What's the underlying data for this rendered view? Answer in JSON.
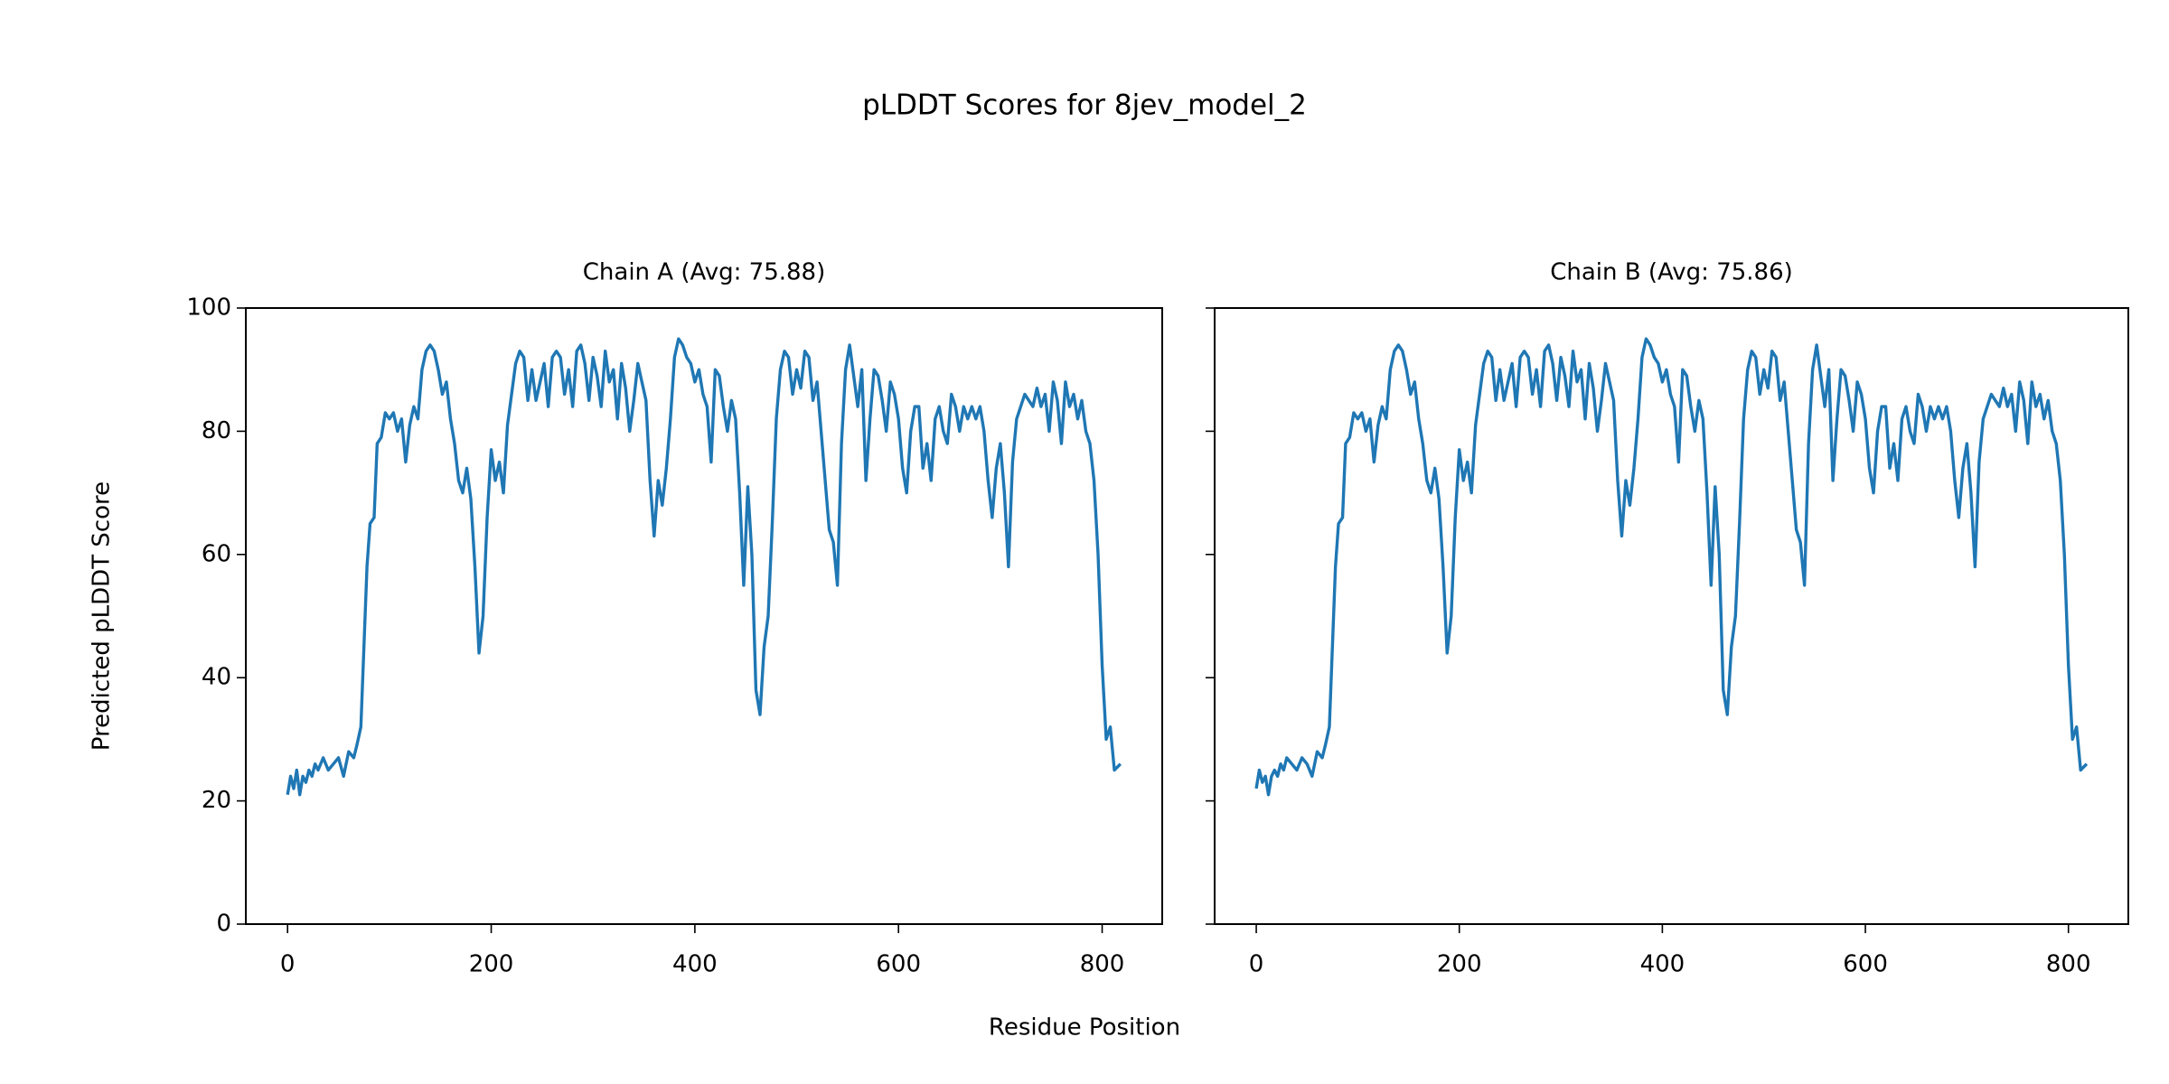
{
  "title": "pLDDT Scores for 8jev_model_2",
  "xlabel": "Residue Position",
  "ylabel": "Predicted pLDDT Score",
  "chart_data": [
    {
      "type": "line",
      "title": "Chain A (Avg: 75.88)",
      "color": "#1f77b4",
      "xlim": [
        -41,
        859
      ],
      "ylim": [
        0,
        100
      ],
      "xticks": [
        0,
        200,
        400,
        600,
        800
      ],
      "yticks": [
        0,
        20,
        40,
        60,
        80,
        100
      ],
      "x": [
        0,
        3,
        6,
        9,
        12,
        15,
        18,
        21,
        24,
        27,
        30,
        35,
        40,
        45,
        50,
        55,
        60,
        65,
        68,
        72,
        75,
        78,
        81,
        85,
        88,
        92,
        96,
        100,
        104,
        108,
        112,
        116,
        120,
        124,
        128,
        132,
        136,
        140,
        144,
        148,
        152,
        156,
        160,
        164,
        168,
        172,
        176,
        180,
        184,
        188,
        192,
        196,
        200,
        204,
        208,
        212,
        216,
        220,
        224,
        228,
        232,
        236,
        240,
        244,
        248,
        252,
        256,
        260,
        264,
        268,
        272,
        276,
        280,
        284,
        288,
        292,
        296,
        300,
        304,
        308,
        312,
        316,
        320,
        324,
        328,
        332,
        336,
        340,
        344,
        348,
        352,
        356,
        360,
        364,
        368,
        372,
        376,
        380,
        384,
        388,
        392,
        396,
        400,
        404,
        408,
        412,
        416,
        420,
        424,
        428,
        432,
        436,
        440,
        444,
        448,
        452,
        456,
        460,
        464,
        468,
        472,
        476,
        480,
        484,
        488,
        492,
        496,
        500,
        504,
        508,
        512,
        516,
        520,
        524,
        528,
        532,
        536,
        540,
        544,
        548,
        552,
        556,
        560,
        564,
        568,
        572,
        576,
        580,
        584,
        588,
        592,
        596,
        600,
        604,
        608,
        612,
        616,
        620,
        624,
        628,
        632,
        636,
        640,
        644,
        648,
        652,
        656,
        660,
        664,
        668,
        672,
        676,
        680,
        684,
        688,
        692,
        696,
        700,
        704,
        708,
        712,
        716,
        720,
        724,
        728,
        732,
        736,
        740,
        744,
        748,
        752,
        756,
        760,
        764,
        768,
        772,
        776,
        780,
        784,
        788,
        792,
        796,
        800,
        804,
        808,
        812,
        818
      ],
      "values": [
        21,
        24,
        22,
        25,
        21,
        24,
        23,
        25,
        24,
        26,
        25,
        27,
        25,
        26,
        27,
        24,
        28,
        27,
        29,
        32,
        45,
        58,
        65,
        66,
        78,
        79,
        83,
        82,
        83,
        80,
        82,
        75,
        81,
        84,
        82,
        90,
        93,
        94,
        93,
        90,
        86,
        88,
        82,
        78,
        72,
        70,
        74,
        69,
        58,
        44,
        50,
        66,
        77,
        72,
        75,
        70,
        81,
        86,
        91,
        93,
        92,
        85,
        90,
        85,
        88,
        91,
        84,
        92,
        93,
        92,
        86,
        90,
        84,
        93,
        94,
        91,
        85,
        92,
        89,
        84,
        93,
        88,
        90,
        82,
        91,
        87,
        80,
        85,
        91,
        88,
        85,
        72,
        63,
        72,
        68,
        74,
        82,
        92,
        95,
        94,
        92,
        91,
        88,
        90,
        86,
        84,
        75,
        90,
        89,
        84,
        80,
        85,
        82,
        70,
        55,
        71,
        60,
        38,
        34,
        45,
        50,
        65,
        82,
        90,
        93,
        92,
        86,
        90,
        87,
        93,
        92,
        85,
        88,
        80,
        72,
        64,
        62,
        55,
        78,
        90,
        94,
        89,
        84,
        90,
        72,
        82,
        90,
        89,
        85,
        80,
        88,
        86,
        82,
        74,
        70,
        80,
        84,
        84,
        74,
        78,
        72,
        82,
        84,
        80,
        78,
        86,
        84,
        80,
        84,
        82,
        84,
        82,
        84,
        80,
        72,
        66,
        74,
        78,
        70,
        58,
        75,
        82,
        84,
        86,
        85,
        84,
        87,
        84,
        86,
        80,
        88,
        85,
        78,
        88,
        84,
        86,
        82,
        85,
        80,
        78,
        72,
        60,
        42,
        30,
        32,
        25,
        26
      ]
    },
    {
      "type": "line",
      "title": "Chain B (Avg: 75.86)",
      "color": "#1f77b4",
      "xlim": [
        -41,
        859
      ],
      "ylim": [
        0,
        100
      ],
      "xticks": [
        0,
        200,
        400,
        600,
        800
      ],
      "yticks": [
        0,
        20,
        40,
        60,
        80,
        100
      ],
      "x": [
        0,
        3,
        6,
        9,
        12,
        15,
        18,
        21,
        24,
        27,
        30,
        35,
        40,
        45,
        50,
        55,
        60,
        65,
        68,
        72,
        75,
        78,
        81,
        85,
        88,
        92,
        96,
        100,
        104,
        108,
        112,
        116,
        120,
        124,
        128,
        132,
        136,
        140,
        144,
        148,
        152,
        156,
        160,
        164,
        168,
        172,
        176,
        180,
        184,
        188,
        192,
        196,
        200,
        204,
        208,
        212,
        216,
        220,
        224,
        228,
        232,
        236,
        240,
        244,
        248,
        252,
        256,
        260,
        264,
        268,
        272,
        276,
        280,
        284,
        288,
        292,
        296,
        300,
        304,
        308,
        312,
        316,
        320,
        324,
        328,
        332,
        336,
        340,
        344,
        348,
        352,
        356,
        360,
        364,
        368,
        372,
        376,
        380,
        384,
        388,
        392,
        396,
        400,
        404,
        408,
        412,
        416,
        420,
        424,
        428,
        432,
        436,
        440,
        444,
        448,
        452,
        456,
        460,
        464,
        468,
        472,
        476,
        480,
        484,
        488,
        492,
        496,
        500,
        504,
        508,
        512,
        516,
        520,
        524,
        528,
        532,
        536,
        540,
        544,
        548,
        552,
        556,
        560,
        564,
        568,
        572,
        576,
        580,
        584,
        588,
        592,
        596,
        600,
        604,
        608,
        612,
        616,
        620,
        624,
        628,
        632,
        636,
        640,
        644,
        648,
        652,
        656,
        660,
        664,
        668,
        672,
        676,
        680,
        684,
        688,
        692,
        696,
        700,
        704,
        708,
        712,
        716,
        720,
        724,
        728,
        732,
        736,
        740,
        744,
        748,
        752,
        756,
        760,
        764,
        768,
        772,
        776,
        780,
        784,
        788,
        792,
        796,
        800,
        804,
        808,
        812,
        818
      ],
      "values": [
        22,
        25,
        23,
        24,
        21,
        24,
        25,
        24,
        26,
        25,
        27,
        26,
        25,
        27,
        26,
        24,
        28,
        27,
        29,
        32,
        45,
        58,
        65,
        66,
        78,
        79,
        83,
        82,
        83,
        80,
        82,
        75,
        81,
        84,
        82,
        90,
        93,
        94,
        93,
        90,
        86,
        88,
        82,
        78,
        72,
        70,
        74,
        69,
        58,
        44,
        50,
        66,
        77,
        72,
        75,
        70,
        81,
        86,
        91,
        93,
        92,
        85,
        90,
        85,
        88,
        91,
        84,
        92,
        93,
        92,
        86,
        90,
        84,
        93,
        94,
        91,
        85,
        92,
        89,
        84,
        93,
        88,
        90,
        82,
        91,
        87,
        80,
        85,
        91,
        88,
        85,
        72,
        63,
        72,
        68,
        74,
        82,
        92,
        95,
        94,
        92,
        91,
        88,
        90,
        86,
        84,
        75,
        90,
        89,
        84,
        80,
        85,
        82,
        70,
        55,
        71,
        60,
        38,
        34,
        45,
        50,
        65,
        82,
        90,
        93,
        92,
        86,
        90,
        87,
        93,
        92,
        85,
        88,
        80,
        72,
        64,
        62,
        55,
        78,
        90,
        94,
        89,
        84,
        90,
        72,
        82,
        90,
        89,
        85,
        80,
        88,
        86,
        82,
        74,
        70,
        80,
        84,
        84,
        74,
        78,
        72,
        82,
        84,
        80,
        78,
        86,
        84,
        80,
        84,
        82,
        84,
        82,
        84,
        80,
        72,
        66,
        74,
        78,
        70,
        58,
        75,
        82,
        84,
        86,
        85,
        84,
        87,
        84,
        86,
        80,
        88,
        85,
        78,
        88,
        84,
        86,
        82,
        85,
        80,
        78,
        72,
        60,
        42,
        30,
        32,
        25,
        26
      ]
    }
  ]
}
